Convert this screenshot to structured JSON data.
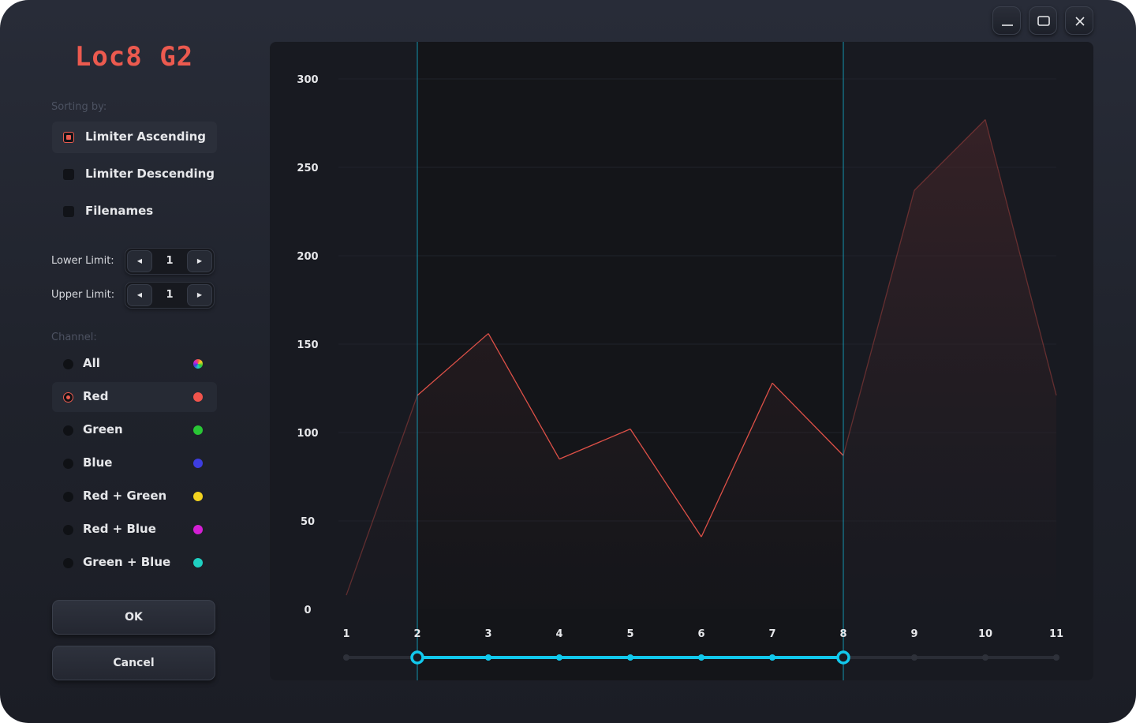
{
  "window": {
    "controls": [
      "minimize-icon",
      "maximize-icon",
      "close-icon"
    ]
  },
  "app": {
    "title": "Loc8 G2",
    "accent": "#ec5a4f"
  },
  "sorting": {
    "label": "Sorting by:",
    "selected": 0,
    "options": [
      {
        "label": "Limiter Ascending"
      },
      {
        "label": "Limiter Descending"
      },
      {
        "label": "Filenames"
      }
    ]
  },
  "limits": {
    "lower": {
      "label": "Lower Limit:",
      "value": "1"
    },
    "upper": {
      "label": "Upper Limit:",
      "value": "1"
    }
  },
  "channel": {
    "label": "Channel:",
    "selected": 1,
    "options": [
      {
        "label": "All",
        "color": "conic"
      },
      {
        "label": "Red",
        "color": "#f0544c"
      },
      {
        "label": "Green",
        "color": "#29c635"
      },
      {
        "label": "Blue",
        "color": "#3d3de0"
      },
      {
        "label": "Red + Green",
        "color": "#f3d31f"
      },
      {
        "label": "Red + Blue",
        "color": "#d41fd4"
      },
      {
        "label": "Green + Blue",
        "color": "#1fd0c2"
      }
    ]
  },
  "buttons": {
    "ok": "OK",
    "cancel": "Cancel"
  },
  "chart_data": {
    "type": "area",
    "x": [
      1,
      2,
      3,
      4,
      5,
      6,
      7,
      8,
      9,
      10,
      11
    ],
    "series": [
      {
        "values": [
          8,
          121,
          156,
          85,
          102,
          41,
          128,
          87,
          237,
          277,
          121
        ],
        "color": "#e8534a"
      }
    ],
    "y_ticks": [
      0,
      50,
      100,
      150,
      200,
      250,
      300
    ],
    "x_ticks": [
      "1",
      "2",
      "3",
      "4",
      "5",
      "6",
      "7",
      "8",
      "9",
      "10",
      "11"
    ],
    "ylim": [
      0,
      300
    ],
    "xlim": [
      1,
      11
    ],
    "grid": true,
    "selection_range": [
      2,
      8
    ],
    "selection_color": "#12c8ec"
  }
}
